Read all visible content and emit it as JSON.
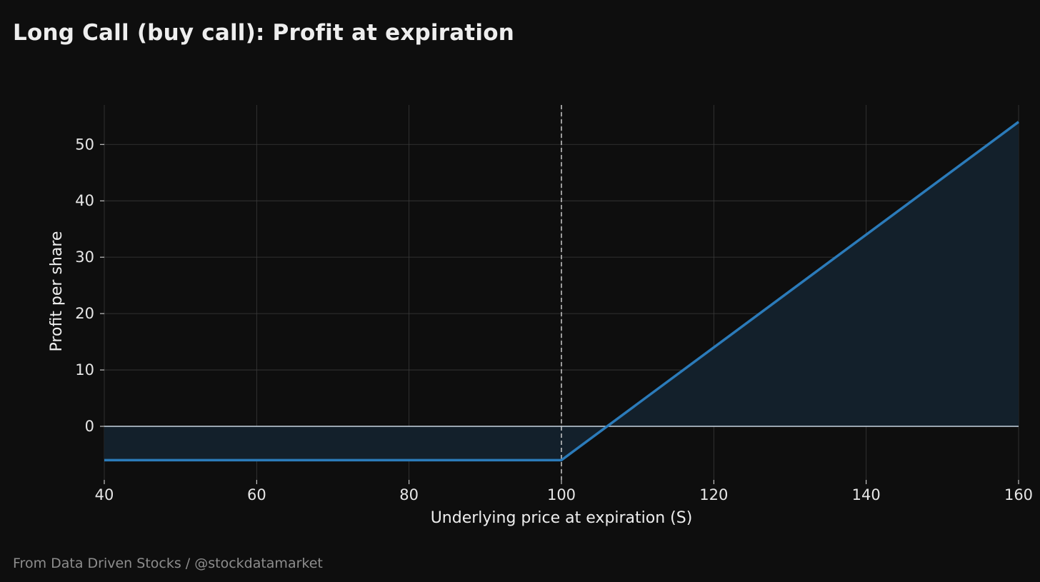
{
  "title": "Long Call (buy call): Profit at expiration",
  "footer": "From Data Driven Stocks / @stockdatamarket",
  "colors": {
    "background": "#0e0e0e",
    "line": "#2b7bba",
    "fill": "#13202b",
    "zero_line": "#c8d6e2",
    "strike_line": "#d8d8d8",
    "grid": "#3a3a3a"
  },
  "chart_data": {
    "type": "line",
    "title": "Long Call (buy call): Profit at expiration",
    "xlabel": "Underlying price at expiration (S)",
    "ylabel": "Profit per share",
    "xlim": [
      40,
      160
    ],
    "ylim": [
      -9.5,
      57
    ],
    "x_ticks": [
      40,
      60,
      80,
      100,
      120,
      140,
      160
    ],
    "y_ticks": [
      0,
      10,
      20,
      30,
      40,
      50
    ],
    "grid": true,
    "strike": 100,
    "premium": 6,
    "breakeven": 106,
    "series": [
      {
        "name": "Profit",
        "x": [
          40,
          100,
          160
        ],
        "y": [
          -6,
          -6,
          54
        ]
      }
    ],
    "fill_between_zero": true,
    "vertical_line": {
      "x": 100,
      "style": "dashed"
    },
    "horizontal_line": {
      "y": 0,
      "style": "solid"
    }
  }
}
